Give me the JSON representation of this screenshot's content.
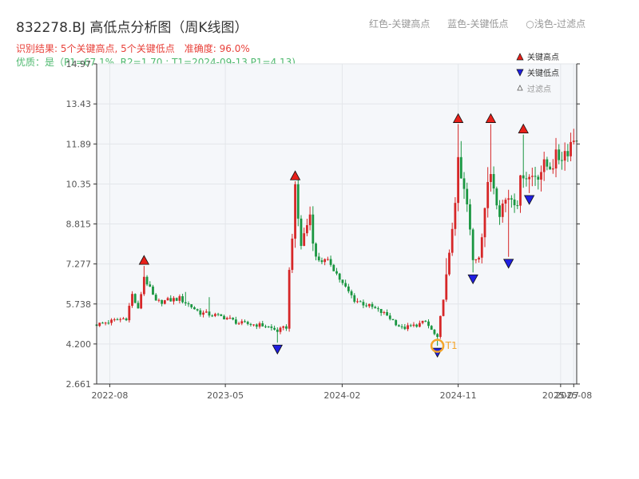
{
  "header": {
    "title": "832278.BJ 高低点分析图（周K线图）",
    "legend_red": "红色-关键高点",
    "legend_blue": "蓝色-关键低点",
    "legend_light": "○浅色-过滤点",
    "result_text": "识别结果: 5个关键高点, 5个关键低点",
    "accuracy_text": "准确度: 96.0%",
    "quality_text": "优质：是（P1=67.1%, R2=1.70 ; T1=2024-09-13 P1=4.13)"
  },
  "chart_legend": {
    "high": "关键高点",
    "low": "关键低点",
    "filtered": "过滤点"
  },
  "annotation": {
    "t1_label": "T1"
  },
  "colors": {
    "up": "#d62728",
    "down": "#1a9641",
    "high_marker": "#e8201a",
    "low_marker": "#1f1fe0",
    "t1_ring": "#f4a52b",
    "plot_bg": "#f5f7fa",
    "grid": "#e3e6ea",
    "axis": "#333333"
  },
  "chart_data": {
    "type": "candlestick",
    "title": "832278.BJ 高低点分析图（周K线图）",
    "xlabel": "",
    "ylabel": "",
    "x_range": [
      "2022-07-01",
      "2025-08-08"
    ],
    "ylim": [
      2.661,
      14.97
    ],
    "y_ticks": [
      2.661,
      4.2,
      5.738,
      7.277,
      8.815,
      10.35,
      11.89,
      13.43,
      14.97
    ],
    "y_tick_labels": [
      "2.661",
      "4.200",
      "5.738",
      "7.277",
      "8.815",
      "10.35",
      "11.89",
      "13.43",
      "14.97"
    ],
    "x_ticks": [
      {
        "date": "2022-08-01",
        "label": "2022-08"
      },
      {
        "date": "2023-05-01",
        "label": "2023-05"
      },
      {
        "date": "2024-02-01",
        "label": "2024-02"
      },
      {
        "date": "2024-11-01",
        "label": "2024-11"
      },
      {
        "date": "2025-07-01",
        "label": "2025-07"
      },
      {
        "date": "2025-08-01",
        "label": "2025-08"
      }
    ],
    "grid": true,
    "legend_position": "top-right",
    "key_highs": [
      {
        "date": "2022-10-21",
        "value": 7.2
      },
      {
        "date": "2023-10-13",
        "value": 10.45
      },
      {
        "date": "2024-11-01",
        "value": 12.65
      },
      {
        "date": "2025-01-17",
        "value": 12.65
      },
      {
        "date": "2025-04-04",
        "value": 12.25
      }
    ],
    "key_lows": [
      {
        "date": "2023-09-01",
        "value": 4.25
      },
      {
        "date": "2024-09-13",
        "value": 4.13
      },
      {
        "date": "2024-12-06",
        "value": 6.95
      },
      {
        "date": "2025-02-28",
        "value": 7.55
      },
      {
        "date": "2025-04-18",
        "value": 10.0
      }
    ],
    "t1_point": {
      "date": "2024-09-13",
      "value": 4.13,
      "label": "T1"
    },
    "anchors": [
      [
        "2022-07-01",
        4.95
      ],
      [
        "2022-09-09",
        5.2
      ],
      [
        "2022-09-23",
        6.1
      ],
      [
        "2022-10-07",
        5.5
      ],
      [
        "2022-10-21",
        6.8
      ],
      [
        "2022-11-18",
        5.8
      ],
      [
        "2023-01-13",
        5.95
      ],
      [
        "2023-03-03",
        5.4
      ],
      [
        "2023-04-07",
        5.3
      ],
      [
        "2023-05-05",
        5.2
      ],
      [
        "2023-06-02",
        5.0
      ],
      [
        "2023-07-07",
        4.95
      ],
      [
        "2023-08-04",
        4.9
      ],
      [
        "2023-09-01",
        4.7
      ],
      [
        "2023-09-22",
        4.85
      ],
      [
        "2023-09-29",
        7.0
      ],
      [
        "2023-10-13",
        10.0
      ],
      [
        "2023-10-27",
        8.0
      ],
      [
        "2023-11-17",
        9.2
      ],
      [
        "2023-12-01",
        7.5
      ],
      [
        "2024-01-05",
        7.3
      ],
      [
        "2024-02-02",
        6.5
      ],
      [
        "2024-03-01",
        5.9
      ],
      [
        "2024-04-12",
        5.6
      ],
      [
        "2024-05-17",
        5.3
      ],
      [
        "2024-06-21",
        4.8
      ],
      [
        "2024-07-19",
        4.9
      ],
      [
        "2024-08-16",
        5.05
      ],
      [
        "2024-09-13",
        4.4
      ],
      [
        "2024-09-27",
        6.0
      ],
      [
        "2024-10-11",
        7.6
      ],
      [
        "2024-11-01",
        11.0
      ],
      [
        "2024-11-22",
        9.5
      ],
      [
        "2024-12-06",
        7.4
      ],
      [
        "2024-12-20",
        7.6
      ],
      [
        "2025-01-03",
        9.5
      ],
      [
        "2025-01-17",
        10.8
      ],
      [
        "2025-02-07",
        9.4
      ],
      [
        "2025-02-28",
        9.9
      ],
      [
        "2025-03-21",
        9.8
      ],
      [
        "2025-04-04",
        10.9
      ],
      [
        "2025-04-18",
        10.6
      ],
      [
        "2025-05-16",
        10.9
      ],
      [
        "2025-06-13",
        11.2
      ],
      [
        "2025-07-11",
        11.6
      ],
      [
        "2025-08-08",
        12.3
      ]
    ],
    "wick_spikes": [
      {
        "date": "2023-01-27",
        "value": 6.2
      },
      {
        "date": "2023-03-24",
        "value": 6.0
      },
      {
        "date": "2024-10-04",
        "value": 7.5
      },
      {
        "date": "2024-11-08",
        "value": 12.0
      },
      {
        "date": "2025-01-10",
        "value": 11.0
      },
      {
        "date": "2025-08-08",
        "value": 13.6
      }
    ]
  }
}
